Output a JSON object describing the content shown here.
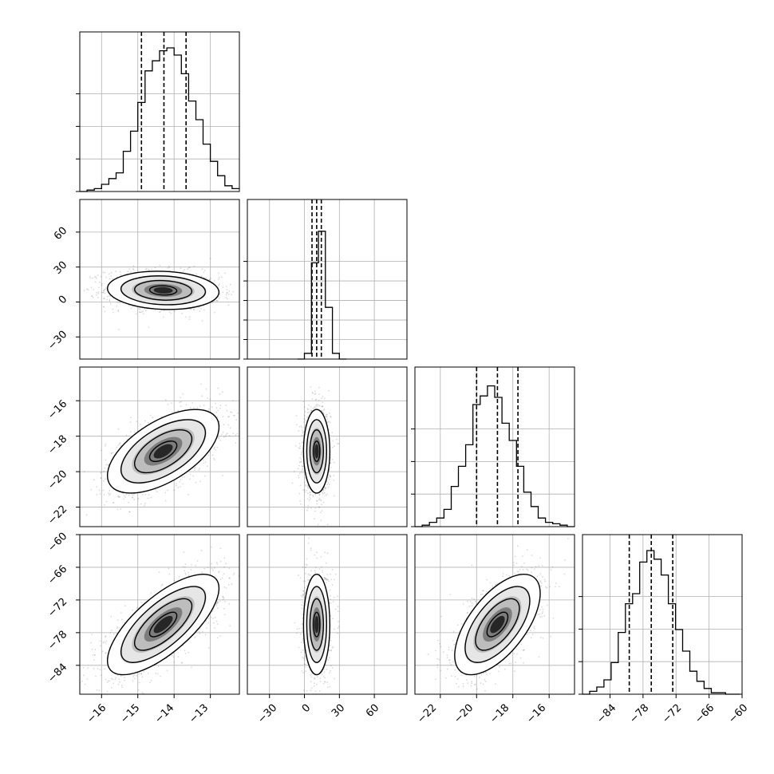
{
  "chart_data": {
    "type": "corner",
    "parameters": 4,
    "colors": {
      "line": "#000000",
      "grid": "#b0b0b0",
      "scatter": "#555555",
      "background": "#ffffff"
    },
    "grid": true,
    "quantile_lines": "dashed",
    "panels": {
      "hist_0": {
        "xlim": [
          -16.6,
          -12.2
        ],
        "grid_x": [
          -16,
          -15,
          -14,
          -13
        ],
        "grid_y_fraction": [
          0.3,
          0.6,
          0.9
        ],
        "quantiles": [
          -14.9,
          -14.28,
          -13.67
        ],
        "bins": {
          "start": -16.6,
          "width": 0.2,
          "counts": [
            0.0,
            0.01,
            0.02,
            0.05,
            0.09,
            0.13,
            0.28,
            0.42,
            0.62,
            0.84,
            0.91,
            0.98,
            1.0,
            0.95,
            0.82,
            0.63,
            0.5,
            0.33,
            0.21,
            0.11,
            0.04,
            0.02
          ]
        }
      },
      "hist_1": {
        "xlim": [
          -49,
          88
        ],
        "grid_x": [
          -30,
          0,
          30,
          60
        ],
        "grid_y_fraction": [
          0.18,
          0.36,
          0.54,
          0.72,
          0.9
        ],
        "quantiles": [
          6.5,
          10.5,
          14.5
        ],
        "bins": {
          "start": -6,
          "width": 6,
          "counts": [
            0.0,
            0.04,
            0.67,
            0.89,
            0.36,
            0.04,
            0.0
          ]
        }
      },
      "hist_2": {
        "xlim": [
          -23.4,
          -14.6
        ],
        "grid_x": [
          -22,
          -20,
          -18,
          -16
        ],
        "grid_y_fraction": [
          0.3,
          0.6,
          0.9
        ],
        "quantiles": [
          -20.0,
          -18.85,
          -17.72
        ],
        "bins": {
          "start": -23.4,
          "width": 0.4,
          "counts": [
            0.0,
            0.01,
            0.03,
            0.06,
            0.12,
            0.28,
            0.42,
            0.57,
            0.85,
            0.91,
            0.98,
            0.9,
            0.72,
            0.6,
            0.42,
            0.24,
            0.14,
            0.06,
            0.03,
            0.02,
            0.01,
            0.0
          ]
        }
      },
      "hist_3": {
        "xlim": [
          -89,
          -60
        ],
        "grid_x": [
          -84,
          -78,
          -72,
          -66,
          -60
        ],
        "grid_y_fraction": [
          0.3,
          0.6,
          0.9
        ],
        "quantiles": [
          -80.5,
          -76.5,
          -72.6
        ],
        "bins": {
          "start": -89,
          "width": 1.3,
          "counts": [
            0.0,
            0.02,
            0.05,
            0.1,
            0.22,
            0.43,
            0.63,
            0.7,
            0.92,
            1.0,
            0.94,
            0.83,
            0.63,
            0.45,
            0.3,
            0.16,
            0.09,
            0.04,
            0.01,
            0.01,
            0.0,
            0.0
          ]
        }
      },
      "hist2d_1_0": {
        "xlim": [
          -16.6,
          -12.2
        ],
        "ylim": [
          -49,
          88
        ],
        "center": [
          -14.3,
          10
        ],
        "sigma": [
          0.75,
          8
        ],
        "rho": -0.1,
        "grid_x": [
          -16,
          -15,
          -14,
          -13
        ],
        "grid_y": [
          -30,
          0,
          30,
          60
        ]
      },
      "hist2d_2_0": {
        "xlim": [
          -16.6,
          -12.2
        ],
        "ylim": [
          -23.1,
          -14.1
        ],
        "center": [
          -14.3,
          -18.85
        ],
        "sigma": [
          0.75,
          1.15
        ],
        "rho": 0.58,
        "grid_x": [
          -16,
          -15,
          -14,
          -13
        ],
        "grid_y": [
          -22,
          -20,
          -18,
          -16
        ]
      },
      "hist2d_2_1": {
        "xlim": [
          -49,
          88
        ],
        "ylim": [
          -23.1,
          -14.1
        ],
        "center": [
          10.5,
          -18.85
        ],
        "sigma": [
          5.5,
          1.15
        ],
        "rho": 0.0,
        "grid_x": [
          -30,
          0,
          30,
          60
        ],
        "grid_y": [
          -22,
          -20,
          -18,
          -16
        ]
      },
      "hist2d_3_0": {
        "xlim": [
          -16.6,
          -12.2
        ],
        "ylim": [
          -89.3,
          -60
        ],
        "center": [
          -14.3,
          -76.5
        ],
        "sigma": [
          0.75,
          4.5
        ],
        "rho": 0.72,
        "grid_x": [
          -16,
          -15,
          -14,
          -13
        ],
        "grid_y": [
          -84,
          -78,
          -72,
          -66,
          -60
        ]
      },
      "hist2d_3_1": {
        "xlim": [
          -49,
          88
        ],
        "ylim": [
          -89.3,
          -60
        ],
        "center": [
          10.5,
          -76.5
        ],
        "sigma": [
          5.5,
          4.5
        ],
        "rho": 0.0,
        "grid_x": [
          -30,
          0,
          30,
          60
        ],
        "grid_y": [
          -84,
          -78,
          -72,
          -66,
          -60
        ]
      },
      "hist2d_3_2": {
        "xlim": [
          -23.4,
          -14.6
        ],
        "ylim": [
          -89.3,
          -60
        ],
        "center": [
          -18.85,
          -76.5
        ],
        "sigma": [
          1.15,
          4.5
        ],
        "rho": 0.62,
        "grid_x": [
          -22,
          -20,
          -18,
          -16
        ],
        "grid_y": [
          -84,
          -78,
          -72,
          -66,
          -60
        ]
      }
    },
    "tick_labels": {
      "row_1_y": [
        "60",
        "30",
        "0",
        "−30"
      ],
      "row_2_y": [
        "−16",
        "−18",
        "−20",
        "−22"
      ],
      "row_3_y": [
        "−60",
        "−66",
        "−72",
        "−78",
        "−84"
      ],
      "col_0_x": [
        "−16",
        "−15",
        "−14",
        "−13"
      ],
      "col_1_x": [
        "−30",
        "0",
        "30",
        "60"
      ],
      "col_2_x": [
        "−22",
        "−20",
        "−18",
        "−16"
      ],
      "col_3_x": [
        "−84",
        "−78",
        "−72",
        "−66",
        "−60"
      ]
    }
  }
}
